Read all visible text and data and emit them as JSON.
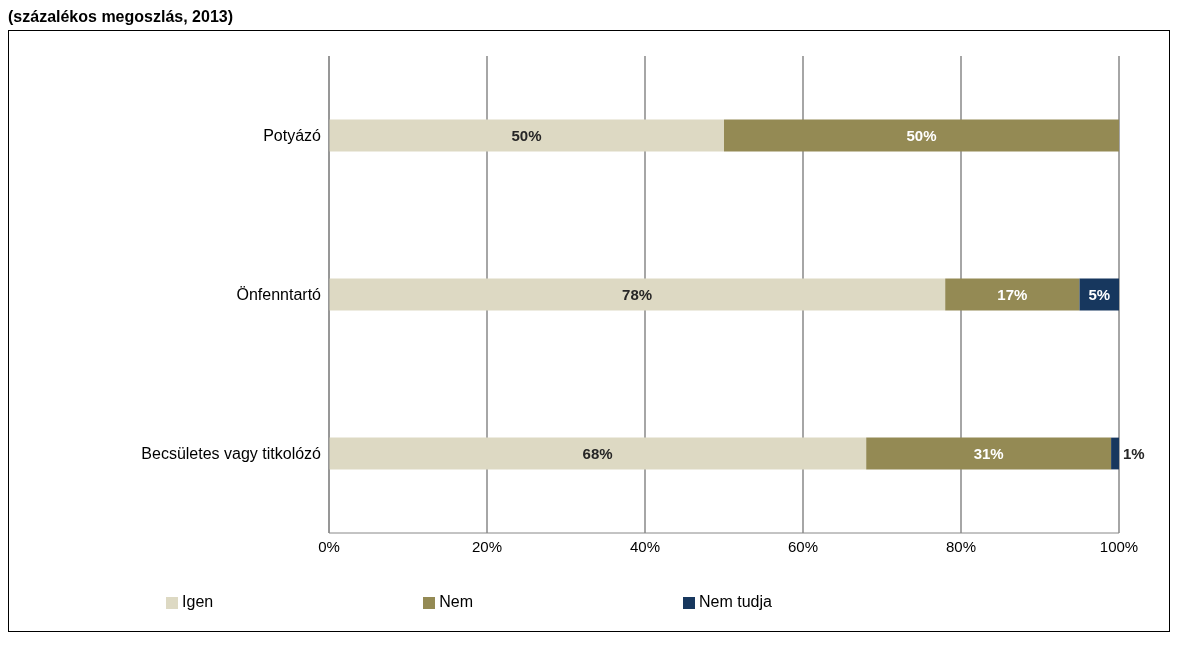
{
  "chart_data": {
    "type": "bar",
    "orientation": "horizontal",
    "stacked": true,
    "title": "(százalékos megoszlás, 2013)",
    "categories": [
      "Potyázó",
      "Önfenntartó",
      "Becsületes vagy titkolózó"
    ],
    "series": [
      {
        "name": "Igen",
        "color": "#ddd9c3",
        "values": [
          50,
          78,
          68
        ],
        "value_labels": [
          "50%",
          "78%",
          "68%"
        ]
      },
      {
        "name": "Nem",
        "color": "#948a54",
        "values": [
          50,
          17,
          31
        ],
        "value_labels": [
          "50%",
          "17%",
          "31%"
        ]
      },
      {
        "name": "Nem tudja",
        "color": "#17375e",
        "values": [
          0,
          5,
          1
        ],
        "value_labels": [
          null,
          "5%",
          "1%"
        ]
      }
    ],
    "xlim": [
      0,
      100
    ],
    "xticks": [
      {
        "value": 0,
        "label": "0%"
      },
      {
        "value": 20,
        "label": "20%"
      },
      {
        "value": 40,
        "label": "40%"
      },
      {
        "value": 60,
        "label": "60%"
      },
      {
        "value": 80,
        "label": "80%"
      },
      {
        "value": 100,
        "label": "100%"
      }
    ],
    "grid": "x",
    "legend": "bottom"
  }
}
